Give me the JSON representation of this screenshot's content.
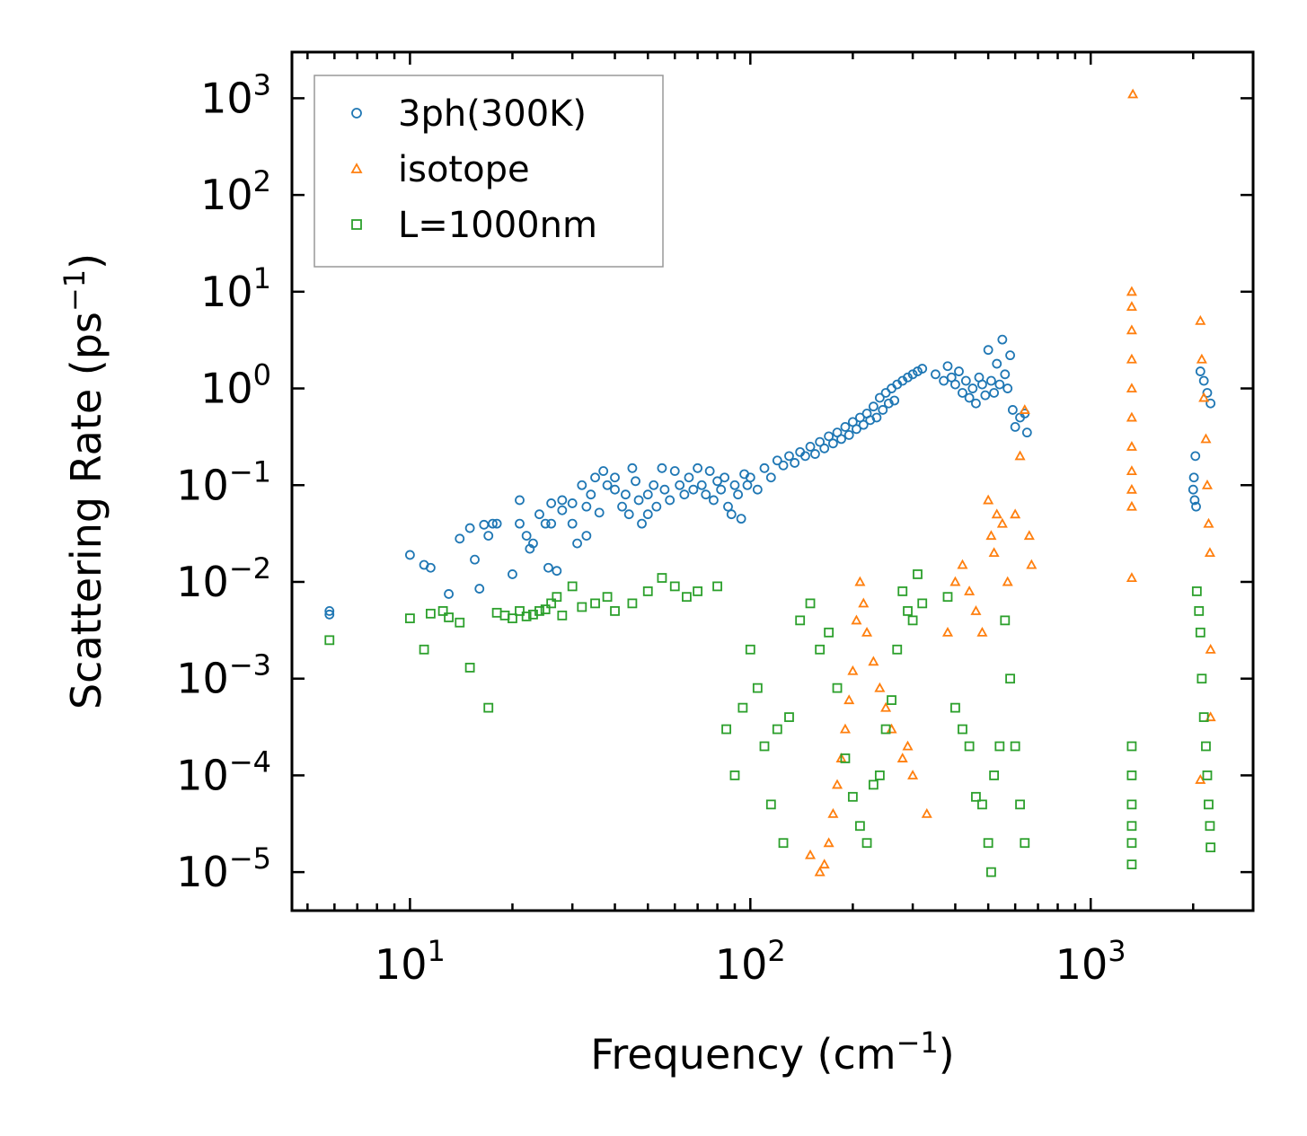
{
  "chart_data": {
    "type": "scatter",
    "xscale": "log",
    "yscale": "log",
    "xlabel": "Frequency (cm",
    "xlabel_sup": "−1",
    "xlabel_end": ")",
    "ylabel": "Scattering Rate (ps",
    "ylabel_sup": "−1",
    "ylabel_end": ")",
    "xlim": [
      4.5,
      3000
    ],
    "ylim": [
      4e-06,
      3000
    ],
    "x_ticks": [
      {
        "value": 10,
        "base": "10",
        "exp": "1"
      },
      {
        "value": 100,
        "base": "10",
        "exp": "2"
      },
      {
        "value": 1000,
        "base": "10",
        "exp": "3"
      }
    ],
    "y_ticks": [
      {
        "value": 1e-05,
        "base": "10",
        "exp": "−5"
      },
      {
        "value": 0.0001,
        "base": "10",
        "exp": "−4"
      },
      {
        "value": 0.001,
        "base": "10",
        "exp": "−3"
      },
      {
        "value": 0.01,
        "base": "10",
        "exp": "−2"
      },
      {
        "value": 0.1,
        "base": "10",
        "exp": "−1"
      },
      {
        "value": 1,
        "base": "10",
        "exp": "0"
      },
      {
        "value": 10,
        "base": "10",
        "exp": "1"
      },
      {
        "value": 100,
        "base": "10",
        "exp": "2"
      },
      {
        "value": 1000,
        "base": "10",
        "exp": "3"
      }
    ],
    "legend_position": "top-left",
    "series": [
      {
        "name": "3ph(300K)",
        "marker": "circle",
        "color": "#1f77b4",
        "points": [
          [
            5.8,
            0.005
          ],
          [
            5.8,
            0.0046
          ],
          [
            10,
            0.019
          ],
          [
            11,
            0.015
          ],
          [
            11.5,
            0.014
          ],
          [
            13,
            0.0075
          ],
          [
            14,
            0.028
          ],
          [
            15,
            0.036
          ],
          [
            15.5,
            0.017
          ],
          [
            16,
            0.0085
          ],
          [
            16.5,
            0.039
          ],
          [
            17,
            0.03
          ],
          [
            17.5,
            0.04
          ],
          [
            18,
            0.04
          ],
          [
            20,
            0.012
          ],
          [
            21,
            0.07
          ],
          [
            21,
            0.04
          ],
          [
            22,
            0.03
          ],
          [
            22.5,
            0.022
          ],
          [
            23,
            0.025
          ],
          [
            24,
            0.05
          ],
          [
            25,
            0.04
          ],
          [
            25.5,
            0.014
          ],
          [
            26,
            0.065
          ],
          [
            26,
            0.04
          ],
          [
            27,
            0.013
          ],
          [
            28,
            0.07
          ],
          [
            28,
            0.055
          ],
          [
            30,
            0.065
          ],
          [
            30,
            0.04
          ],
          [
            31,
            0.025
          ],
          [
            32,
            0.1
          ],
          [
            33,
            0.06
          ],
          [
            33,
            0.03
          ],
          [
            34,
            0.08
          ],
          [
            35,
            0.12
          ],
          [
            36,
            0.052
          ],
          [
            37,
            0.14
          ],
          [
            38,
            0.1
          ],
          [
            40,
            0.12
          ],
          [
            40,
            0.09
          ],
          [
            42,
            0.06
          ],
          [
            43,
            0.08
          ],
          [
            44,
            0.05
          ],
          [
            45,
            0.15
          ],
          [
            46,
            0.11
          ],
          [
            47,
            0.07
          ],
          [
            48,
            0.04
          ],
          [
            50,
            0.08
          ],
          [
            50,
            0.05
          ],
          [
            52,
            0.1
          ],
          [
            53,
            0.06
          ],
          [
            55,
            0.15
          ],
          [
            56,
            0.09
          ],
          [
            58,
            0.07
          ],
          [
            60,
            0.14
          ],
          [
            62,
            0.1
          ],
          [
            64,
            0.08
          ],
          [
            66,
            0.12
          ],
          [
            68,
            0.09
          ],
          [
            70,
            0.15
          ],
          [
            72,
            0.1
          ],
          [
            74,
            0.08
          ],
          [
            76,
            0.14
          ],
          [
            78,
            0.07
          ],
          [
            80,
            0.11
          ],
          [
            82,
            0.09
          ],
          [
            84,
            0.12
          ],
          [
            86,
            0.06
          ],
          [
            88,
            0.05
          ],
          [
            90,
            0.1
          ],
          [
            92,
            0.08
          ],
          [
            94,
            0.045
          ],
          [
            96,
            0.13
          ],
          [
            98,
            0.1
          ],
          [
            100,
            0.12
          ],
          [
            105,
            0.09
          ],
          [
            110,
            0.15
          ],
          [
            115,
            0.12
          ],
          [
            120,
            0.18
          ],
          [
            125,
            0.16
          ],
          [
            130,
            0.2
          ],
          [
            135,
            0.17
          ],
          [
            140,
            0.22
          ],
          [
            145,
            0.2
          ],
          [
            150,
            0.25
          ],
          [
            155,
            0.21
          ],
          [
            160,
            0.28
          ],
          [
            165,
            0.24
          ],
          [
            170,
            0.32
          ],
          [
            175,
            0.27
          ],
          [
            180,
            0.35
          ],
          [
            185,
            0.3
          ],
          [
            190,
            0.4
          ],
          [
            195,
            0.33
          ],
          [
            200,
            0.45
          ],
          [
            205,
            0.38
          ],
          [
            210,
            0.5
          ],
          [
            215,
            0.42
          ],
          [
            220,
            0.55
          ],
          [
            225,
            0.47
          ],
          [
            230,
            0.65
          ],
          [
            235,
            0.5
          ],
          [
            240,
            0.8
          ],
          [
            245,
            0.6
          ],
          [
            250,
            0.9
          ],
          [
            255,
            0.7
          ],
          [
            260,
            1.0
          ],
          [
            265,
            0.75
          ],
          [
            270,
            1.1
          ],
          [
            280,
            1.2
          ],
          [
            290,
            1.3
          ],
          [
            300,
            1.4
          ],
          [
            310,
            1.5
          ],
          [
            320,
            1.6
          ],
          [
            350,
            1.4
          ],
          [
            370,
            1.2
          ],
          [
            380,
            1.7
          ],
          [
            390,
            1.3
          ],
          [
            400,
            1.1
          ],
          [
            410,
            1.5
          ],
          [
            420,
            0.9
          ],
          [
            430,
            1.2
          ],
          [
            440,
            0.8
          ],
          [
            450,
            1.0
          ],
          [
            460,
            0.7
          ],
          [
            470,
            1.3
          ],
          [
            480,
            1.1
          ],
          [
            490,
            0.85
          ],
          [
            500,
            2.5
          ],
          [
            510,
            1.2
          ],
          [
            520,
            0.9
          ],
          [
            530,
            1.8
          ],
          [
            540,
            1.1
          ],
          [
            550,
            3.2
          ],
          [
            560,
            1.4
          ],
          [
            570,
            1.0
          ],
          [
            580,
            2.2
          ],
          [
            590,
            0.6
          ],
          [
            600,
            0.4
          ],
          [
            620,
            0.5
          ],
          [
            640,
            0.55
          ],
          [
            650,
            0.35
          ],
          [
            2000,
            0.09
          ],
          [
            2010,
            0.12
          ],
          [
            2020,
            0.07
          ],
          [
            2030,
            0.2
          ],
          [
            2040,
            0.06
          ],
          [
            2100,
            1.5
          ],
          [
            2150,
            1.2
          ],
          [
            2200,
            0.9
          ],
          [
            2250,
            0.7
          ]
        ]
      },
      {
        "name": "isotope",
        "marker": "triangle",
        "color": "#ff7f0e",
        "points": [
          [
            150,
            1.5e-05
          ],
          [
            160,
            1e-05
          ],
          [
            165,
            1.2e-05
          ],
          [
            170,
            2e-05
          ],
          [
            175,
            4e-05
          ],
          [
            180,
            8e-05
          ],
          [
            185,
            0.00015
          ],
          [
            190,
            0.0003
          ],
          [
            195,
            0.0006
          ],
          [
            200,
            0.0012
          ],
          [
            205,
            0.004
          ],
          [
            210,
            0.01
          ],
          [
            215,
            0.006
          ],
          [
            220,
            0.003
          ],
          [
            230,
            0.0015
          ],
          [
            240,
            0.0008
          ],
          [
            250,
            0.0005
          ],
          [
            260,
            0.0003
          ],
          [
            280,
            0.00015
          ],
          [
            290,
            0.0002
          ],
          [
            300,
            0.0001
          ],
          [
            330,
            4e-05
          ],
          [
            380,
            0.003
          ],
          [
            400,
            0.01
          ],
          [
            420,
            0.015
          ],
          [
            440,
            0.008
          ],
          [
            460,
            0.005
          ],
          [
            480,
            0.003
          ],
          [
            500,
            0.07
          ],
          [
            510,
            0.03
          ],
          [
            520,
            0.02
          ],
          [
            530,
            0.05
          ],
          [
            550,
            0.04
          ],
          [
            570,
            0.01
          ],
          [
            600,
            0.05
          ],
          [
            620,
            0.2
          ],
          [
            640,
            0.6
          ],
          [
            660,
            0.03
          ],
          [
            670,
            0.015
          ],
          [
            1320,
            10
          ],
          [
            1320,
            7
          ],
          [
            1320,
            4
          ],
          [
            1320,
            2
          ],
          [
            1320,
            1
          ],
          [
            1320,
            0.5
          ],
          [
            1320,
            0.25
          ],
          [
            1320,
            0.14
          ],
          [
            1320,
            0.09
          ],
          [
            1320,
            0.06
          ],
          [
            1320,
            0.011
          ],
          [
            1330,
            1100
          ],
          [
            2100,
            5
          ],
          [
            2120,
            2
          ],
          [
            2150,
            0.8
          ],
          [
            2180,
            0.3
          ],
          [
            2200,
            0.1
          ],
          [
            2220,
            0.04
          ],
          [
            2240,
            0.02
          ],
          [
            2250,
            0.002
          ],
          [
            2250,
            0.0004
          ],
          [
            2100,
            9e-05
          ]
        ]
      },
      {
        "name": "L=1000nm",
        "marker": "square",
        "color": "#2ca02c",
        "points": [
          [
            5.8,
            0.0025
          ],
          [
            10,
            0.0042
          ],
          [
            11,
            0.002
          ],
          [
            11.5,
            0.0047
          ],
          [
            12.5,
            0.005
          ],
          [
            13,
            0.0043
          ],
          [
            14,
            0.0038
          ],
          [
            15,
            0.0013
          ],
          [
            17,
            0.0005
          ],
          [
            18,
            0.0048
          ],
          [
            19,
            0.0045
          ],
          [
            20,
            0.0042
          ],
          [
            21,
            0.005
          ],
          [
            22,
            0.0044
          ],
          [
            23,
            0.0046
          ],
          [
            24,
            0.005
          ],
          [
            25,
            0.0052
          ],
          [
            26,
            0.006
          ],
          [
            27,
            0.007
          ],
          [
            28,
            0.0045
          ],
          [
            30,
            0.009
          ],
          [
            32,
            0.0055
          ],
          [
            35,
            0.006
          ],
          [
            38,
            0.007
          ],
          [
            40,
            0.005
          ],
          [
            45,
            0.006
          ],
          [
            50,
            0.008
          ],
          [
            55,
            0.011
          ],
          [
            60,
            0.009
          ],
          [
            65,
            0.007
          ],
          [
            70,
            0.008
          ],
          [
            80,
            0.009
          ],
          [
            85,
            0.0003
          ],
          [
            90,
            0.0001
          ],
          [
            95,
            0.0005
          ],
          [
            100,
            0.002
          ],
          [
            105,
            0.0008
          ],
          [
            110,
            0.0002
          ],
          [
            115,
            5e-05
          ],
          [
            120,
            0.0003
          ],
          [
            125,
            2e-05
          ],
          [
            130,
            0.0004
          ],
          [
            140,
            0.004
          ],
          [
            150,
            0.006
          ],
          [
            160,
            0.002
          ],
          [
            170,
            0.003
          ],
          [
            180,
            0.0008
          ],
          [
            190,
            0.00015
          ],
          [
            200,
            6e-05
          ],
          [
            210,
            3e-05
          ],
          [
            220,
            2e-05
          ],
          [
            230,
            8e-05
          ],
          [
            240,
            0.0001
          ],
          [
            250,
            0.0003
          ],
          [
            260,
            0.0006
          ],
          [
            270,
            0.002
          ],
          [
            280,
            0.008
          ],
          [
            290,
            0.005
          ],
          [
            300,
            0.004
          ],
          [
            310,
            0.012
          ],
          [
            320,
            0.006
          ],
          [
            380,
            0.007
          ],
          [
            400,
            0.0005
          ],
          [
            420,
            0.0003
          ],
          [
            440,
            0.0002
          ],
          [
            460,
            6e-05
          ],
          [
            480,
            5e-05
          ],
          [
            500,
            2e-05
          ],
          [
            510,
            1e-05
          ],
          [
            520,
            0.0001
          ],
          [
            540,
            0.0002
          ],
          [
            560,
            0.004
          ],
          [
            580,
            0.001
          ],
          [
            600,
            0.0002
          ],
          [
            620,
            5e-05
          ],
          [
            640,
            2e-05
          ],
          [
            1320,
            0.0002
          ],
          [
            1320,
            0.0001
          ],
          [
            1320,
            5e-05
          ],
          [
            1320,
            3e-05
          ],
          [
            1320,
            2e-05
          ],
          [
            1320,
            1.2e-05
          ],
          [
            2050,
            0.008
          ],
          [
            2080,
            0.005
          ],
          [
            2100,
            0.003
          ],
          [
            2120,
            0.001
          ],
          [
            2150,
            0.0004
          ],
          [
            2180,
            0.0002
          ],
          [
            2200,
            0.0001
          ],
          [
            2220,
            5e-05
          ],
          [
            2240,
            3e-05
          ],
          [
            2250,
            1.8e-05
          ]
        ]
      }
    ]
  }
}
